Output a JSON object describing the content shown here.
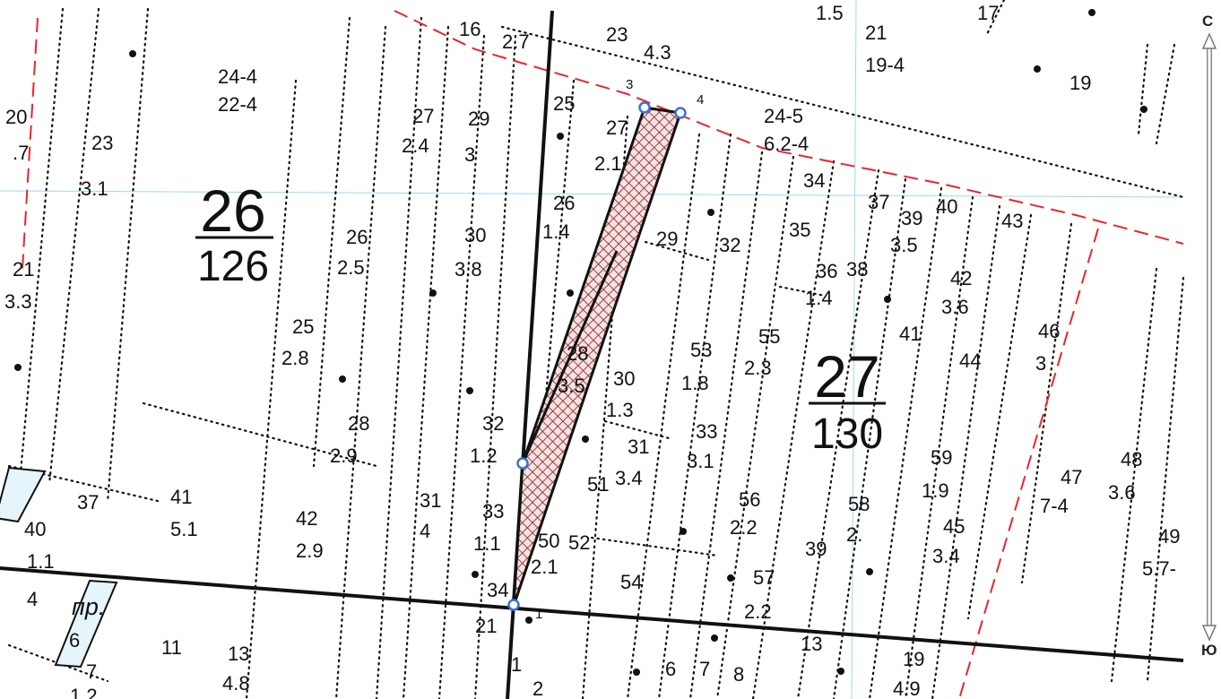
{
  "compass": {
    "north_label": "С",
    "south_label": "Ю"
  },
  "blocks": [
    {
      "number": "26",
      "area": "126"
    },
    {
      "number": "27",
      "area": "130"
    }
  ],
  "vertices": [
    "1",
    "3",
    "4"
  ],
  "street_label": "пр.",
  "parcels": [
    {
      "id": "p1",
      "top": "24-4",
      "bottom": "22-4"
    },
    {
      "id": "p2",
      "top": "16",
      "bottom": "2.7"
    },
    {
      "id": "p3",
      "top": "23",
      "bottom": "4.3"
    },
    {
      "id": "p4",
      "top": "21",
      "bottom": "19-4"
    },
    {
      "id": "p5",
      "top": "1.5",
      "bottom": ""
    },
    {
      "id": "p6",
      "top": "17",
      "bottom": ""
    },
    {
      "id": "p7",
      "top": "19",
      "bottom": ""
    },
    {
      "id": "p8",
      "top": "20",
      "bottom": ".7"
    },
    {
      "id": "p9",
      "top": "23",
      "bottom": "3.1"
    },
    {
      "id": "p10",
      "top": "27",
      "bottom": "2.4"
    },
    {
      "id": "p11",
      "top": "29",
      "bottom": "3"
    },
    {
      "id": "p12",
      "top": "25",
      "bottom": ""
    },
    {
      "id": "p13",
      "top": "27",
      "bottom": "2.1"
    },
    {
      "id": "p14",
      "top": "24-5",
      "bottom": "6.2-4"
    },
    {
      "id": "p15",
      "top": "34",
      "bottom": ""
    },
    {
      "id": "p16",
      "top": "37",
      "bottom": ""
    },
    {
      "id": "p17",
      "top": "39",
      "bottom": "3.5"
    },
    {
      "id": "p18",
      "top": "40",
      "bottom": ""
    },
    {
      "id": "p19",
      "top": "43",
      "bottom": ""
    },
    {
      "id": "p20",
      "top": "26",
      "bottom": "1.4"
    },
    {
      "id": "p21",
      "top": "29",
      "bottom": ""
    },
    {
      "id": "p22",
      "top": "32",
      "bottom": ""
    },
    {
      "id": "p23",
      "top": "35",
      "bottom": ""
    },
    {
      "id": "p24",
      "top": "21",
      "bottom": "3.3"
    },
    {
      "id": "p25",
      "top": "26",
      "bottom": "2.5"
    },
    {
      "id": "p26",
      "top": "30",
      "bottom": "3.8"
    },
    {
      "id": "p27",
      "top": "36",
      "bottom": "1.4"
    },
    {
      "id": "p28",
      "top": "38",
      "bottom": ""
    },
    {
      "id": "p29",
      "top": "42",
      "bottom": "3.6"
    },
    {
      "id": "p30",
      "top": "25",
      "bottom": "2.8"
    },
    {
      "id": "p31",
      "top": "28",
      "bottom": "3.5"
    },
    {
      "id": "p32",
      "top": "53",
      "bottom": "1.8"
    },
    {
      "id": "p33",
      "top": "55",
      "bottom": "2.3"
    },
    {
      "id": "p34",
      "top": "41",
      "bottom": ""
    },
    {
      "id": "p35",
      "top": "44",
      "bottom": ""
    },
    {
      "id": "p36",
      "top": "46",
      "bottom": "3"
    },
    {
      "id": "p37",
      "top": "30",
      "bottom": "1.3"
    },
    {
      "id": "p38",
      "top": "28",
      "bottom": "2.9"
    },
    {
      "id": "p39",
      "top": "32",
      "bottom": "1.2"
    },
    {
      "id": "p40",
      "top": "31",
      "bottom": "3.4"
    },
    {
      "id": "p41",
      "top": "33",
      "bottom": "3.1"
    },
    {
      "id": "p42",
      "top": "59",
      "bottom": "1.9"
    },
    {
      "id": "p43",
      "top": "48",
      "bottom": "3.6"
    },
    {
      "id": "p44",
      "top": "47",
      "bottom": "7-4"
    },
    {
      "id": "p45",
      "top": "37",
      "bottom": ""
    },
    {
      "id": "p46",
      "top": "41",
      "bottom": "5.1"
    },
    {
      "id": "p47",
      "top": "42",
      "bottom": "2.9"
    },
    {
      "id": "p48",
      "top": "31",
      "bottom": "4"
    },
    {
      "id": "p49",
      "top": "51",
      "bottom": ""
    },
    {
      "id": "p50",
      "top": "33",
      "bottom": "1.1"
    },
    {
      "id": "p51",
      "top": "50",
      "bottom": "2.1"
    },
    {
      "id": "p52",
      "top": "52",
      "bottom": ""
    },
    {
      "id": "p53",
      "top": "56",
      "bottom": "2.2"
    },
    {
      "id": "p54",
      "top": "58",
      "bottom": "2."
    },
    {
      "id": "p55",
      "top": "45",
      "bottom": "3.4"
    },
    {
      "id": "p56",
      "top": "39",
      "bottom": ""
    },
    {
      "id": "p57",
      "top": "49",
      "bottom": "5.7-"
    },
    {
      "id": "p58",
      "top": "40",
      "bottom": "1.1"
    },
    {
      "id": "p59",
      "top": "4",
      "bottom": ""
    },
    {
      "id": "p60",
      "top": "6",
      "bottom": ""
    },
    {
      "id": "p61",
      "top": "34",
      "bottom": ""
    },
    {
      "id": "p62",
      "top": "54",
      "bottom": ""
    },
    {
      "id": "p63",
      "top": "57",
      "bottom": "2.2"
    },
    {
      "id": "p64",
      "top": "21",
      "bottom": ""
    },
    {
      "id": "p65",
      "top": "7",
      "bottom": "1.2"
    },
    {
      "id": "p66",
      "top": "11",
      "bottom": ""
    },
    {
      "id": "p67",
      "top": "13",
      "bottom": "4.8"
    },
    {
      "id": "p68",
      "top": "13",
      "bottom": ""
    },
    {
      "id": "p69",
      "top": "19",
      "bottom": "4.9"
    },
    {
      "id": "p70",
      "top": "1",
      "bottom": ""
    },
    {
      "id": "p71",
      "top": "2",
      "bottom": ""
    },
    {
      "id": "p72",
      "top": "6",
      "bottom": ""
    },
    {
      "id": "p73",
      "top": "7",
      "bottom": ""
    },
    {
      "id": "p74",
      "top": "8",
      "bottom": ""
    },
    {
      "id": "p75",
      "top": "2",
      "bottom": ""
    }
  ],
  "colors": {
    "boundary": "#e8262c",
    "hatch": "#8b1a1a",
    "grid": "#9fd8ef",
    "vertex": "#3b6fd8"
  }
}
